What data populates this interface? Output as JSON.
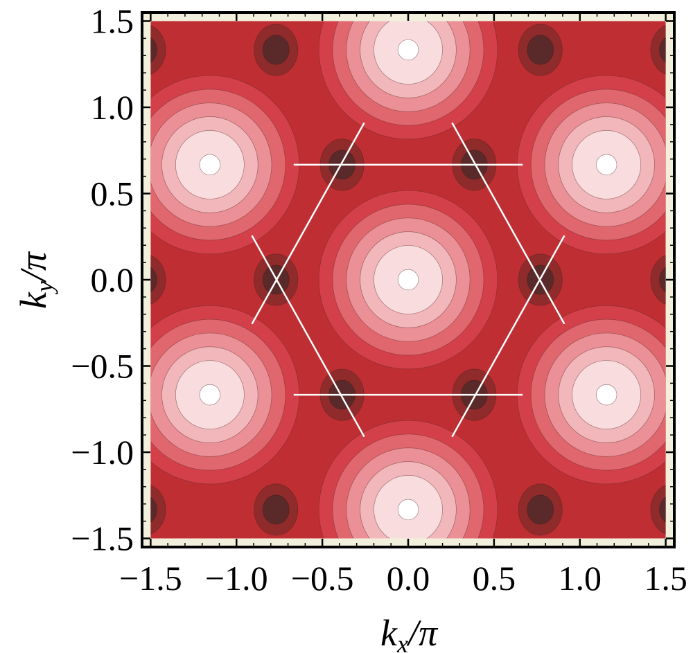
{
  "chart_data": {
    "type": "heatmap",
    "subtype": "filled-contour",
    "xlabel": "k_x/π",
    "ylabel": "k_y/π",
    "xlabel_main": "k",
    "xlabel_sub": "x",
    "xlabel_tail": "/π",
    "ylabel_main": "k",
    "ylabel_sub": "y",
    "ylabel_tail": "/π",
    "xlim": [
      -1.55,
      1.55
    ],
    "ylim": [
      -1.55,
      1.55
    ],
    "field_extent": [
      -1.5,
      1.5
    ],
    "x_ticks": [
      -1.5,
      -1.0,
      -0.5,
      0.0,
      0.5,
      1.0,
      1.5
    ],
    "y_ticks": [
      -1.5,
      -1.0,
      -0.5,
      0.0,
      0.5,
      1.0,
      1.5
    ],
    "x_tick_labels": [
      "−1.5",
      "−1.0",
      "−0.5",
      "0.0",
      "0.5",
      "1.0",
      "1.5"
    ],
    "y_tick_labels": [
      "−1.5",
      "−1.0",
      "−0.5",
      "0.0",
      "0.5",
      "1.0",
      "1.5"
    ],
    "grid": false,
    "legend": "none",
    "maxima": [
      {
        "x": 0.0,
        "y": 0.0
      },
      {
        "x": 0.0,
        "y": 1.333
      },
      {
        "x": 0.0,
        "y": -1.333
      },
      {
        "x": 1.155,
        "y": 0.667
      },
      {
        "x": -1.155,
        "y": 0.667
      },
      {
        "x": 1.155,
        "y": -0.667
      },
      {
        "x": -1.155,
        "y": -0.667
      }
    ],
    "minima": [
      {
        "x": 0.77,
        "y": 0.0
      },
      {
        "x": -0.77,
        "y": 0.0
      },
      {
        "x": 0.385,
        "y": 0.667
      },
      {
        "x": -0.385,
        "y": 0.667
      },
      {
        "x": 0.385,
        "y": -0.667
      },
      {
        "x": -0.385,
        "y": -0.667
      },
      {
        "x": 0.77,
        "y": 1.333
      },
      {
        "x": -0.77,
        "y": 1.333
      },
      {
        "x": 0.77,
        "y": -1.333
      },
      {
        "x": -0.77,
        "y": -1.333
      },
      {
        "x": 1.54,
        "y": 0.0
      },
      {
        "x": -1.54,
        "y": 0.0
      },
      {
        "x": 1.54,
        "y": 1.333
      },
      {
        "x": -1.54,
        "y": 1.333
      },
      {
        "x": 1.54,
        "y": -1.333
      },
      {
        "x": -1.54,
        "y": -1.333
      }
    ],
    "brillouin_zone_lines": [
      {
        "from": [
          -0.667,
          0.667
        ],
        "to": [
          0.667,
          0.667
        ]
      },
      {
        "from": [
          -0.667,
          -0.667
        ],
        "to": [
          0.667,
          -0.667
        ]
      },
      {
        "from": [
          -0.256,
          0.91
        ],
        "to": [
          -0.91,
          -0.256
        ]
      },
      {
        "from": [
          0.256,
          0.91
        ],
        "to": [
          0.91,
          -0.256
        ]
      },
      {
        "from": [
          -0.256,
          -0.91
        ],
        "to": [
          -0.91,
          0.256
        ]
      },
      {
        "from": [
          0.256,
          -0.91
        ],
        "to": [
          0.91,
          0.256
        ]
      }
    ],
    "contour_level_colors": [
      "#5a2a2a",
      "#8f2b2b",
      "#bf2e32",
      "#d4404a",
      "#e0676e",
      "#ea9096",
      "#f2b7bb",
      "#f9dcde",
      "#ffffff"
    ],
    "frame_fill_color": "#f2f0dc",
    "line_color": "#ffffff"
  }
}
